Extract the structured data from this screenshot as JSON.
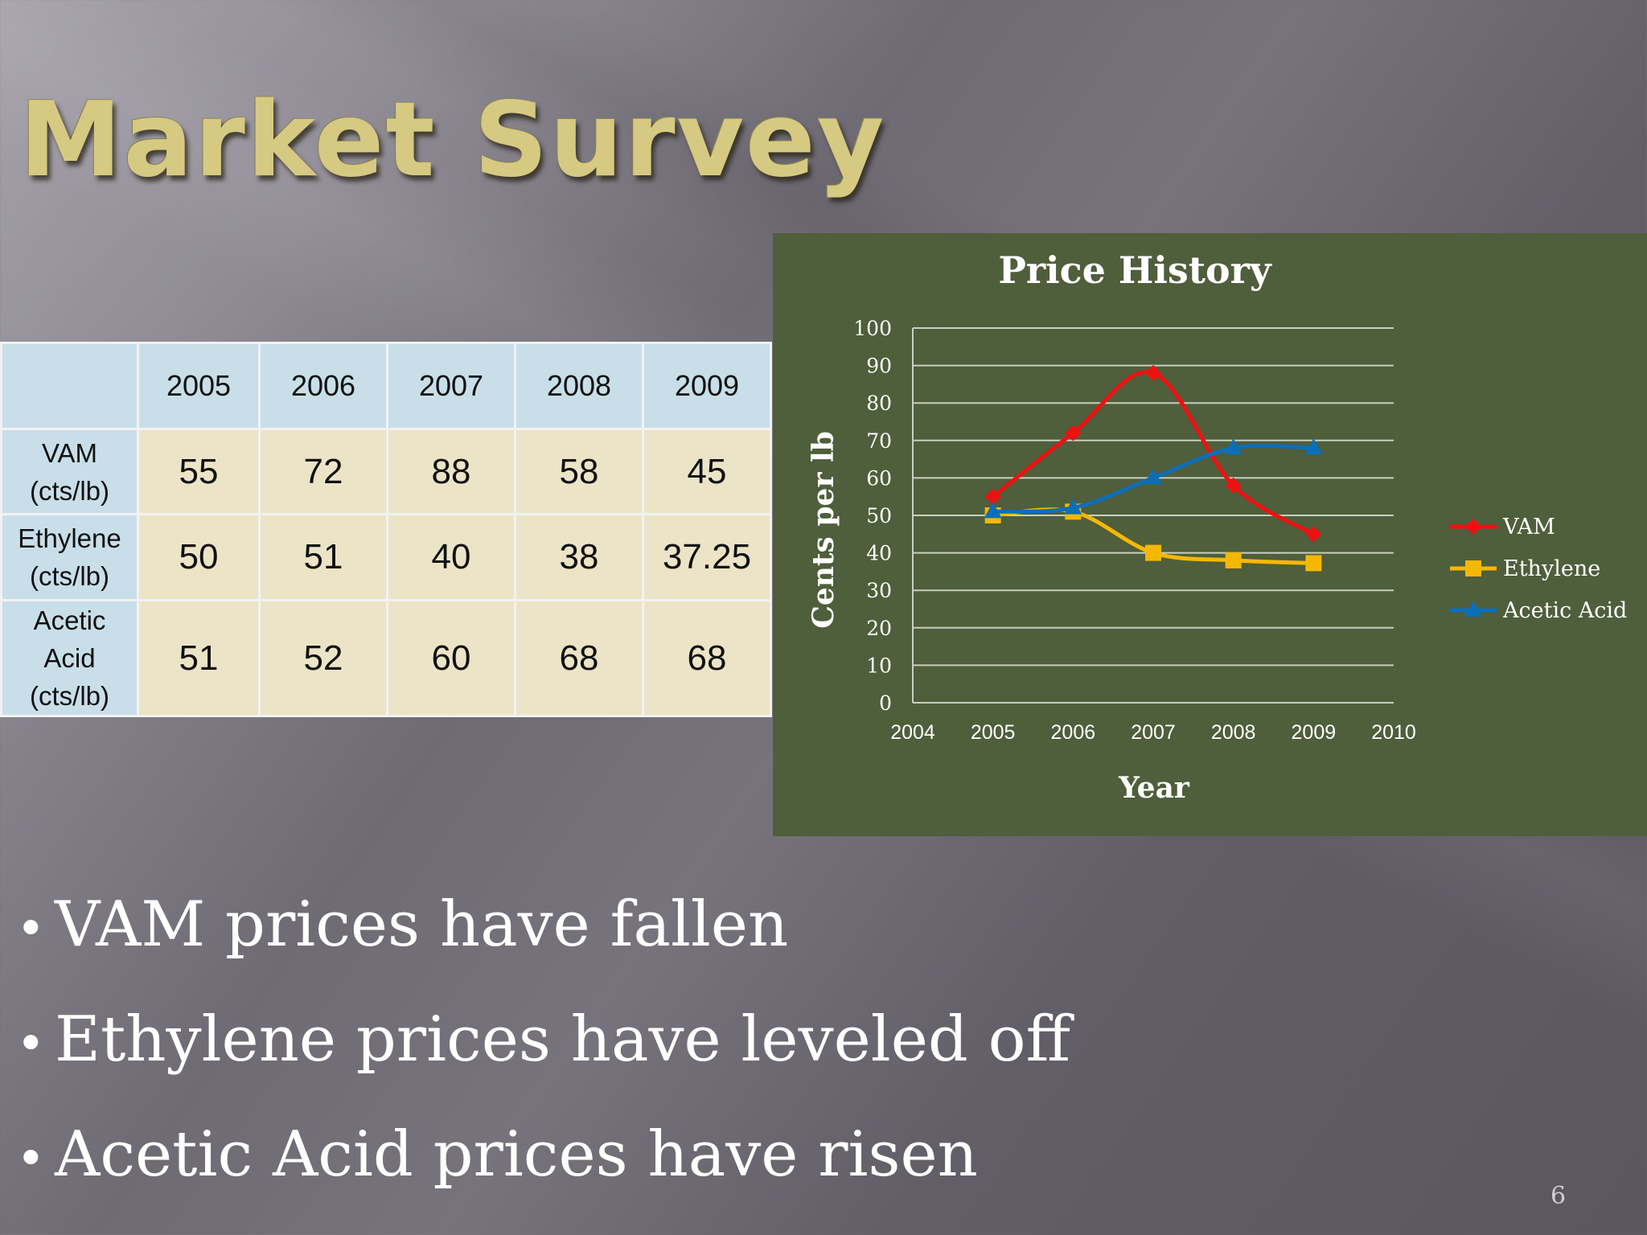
{
  "slide": {
    "title": "Market Survey",
    "page_number": "6"
  },
  "table": {
    "header": [
      "",
      "2005",
      "2006",
      "2007",
      "2008",
      "2009"
    ],
    "rows": [
      {
        "label": [
          "VAM",
          "(cts/lb)"
        ],
        "values": [
          "55",
          "72",
          "88",
          "58",
          "45"
        ]
      },
      {
        "label": [
          "Ethylene",
          "(cts/lb)"
        ],
        "values": [
          "50",
          "51",
          "40",
          "38",
          "37.25"
        ]
      },
      {
        "label": [
          "Acetic",
          "Acid",
          "(cts/lb)"
        ],
        "values": [
          "51",
          "52",
          "60",
          "68",
          "68"
        ]
      }
    ]
  },
  "chart_data": {
    "type": "line",
    "title": "Price History",
    "xlabel": "Year",
    "ylabel": "Cents per lb",
    "xlim": [
      2004,
      2010
    ],
    "ylim": [
      0,
      100
    ],
    "x_ticks": [
      "2004",
      "2005",
      "2006",
      "2007",
      "2008",
      "2009",
      "2010"
    ],
    "y_ticks": [
      "0",
      "10",
      "20",
      "30",
      "40",
      "50",
      "60",
      "70",
      "80",
      "90",
      "100"
    ],
    "grid": true,
    "legend_position": "right",
    "x": [
      2005,
      2006,
      2007,
      2008,
      2009
    ],
    "series": [
      {
        "name": "VAM",
        "values": [
          55,
          72,
          88,
          58,
          45
        ],
        "color": "#ee1111",
        "marker": "diamond"
      },
      {
        "name": "Ethylene",
        "values": [
          50,
          51,
          40,
          38,
          37.25
        ],
        "color": "#f5b800",
        "marker": "square"
      },
      {
        "name": "Acetic Acid",
        "values": [
          51,
          52,
          60,
          68,
          68
        ],
        "color": "#0d6eb8",
        "marker": "triangle"
      }
    ]
  },
  "bullets": [
    "VAM prices have fallen",
    "Ethylene prices have leveled off",
    "Acetic Acid prices have risen"
  ],
  "colors": {
    "title": "#d6c982",
    "chart_background": "#4f5e3b",
    "table_header": "#c8dfe9",
    "table_cell": "#ece4c6"
  }
}
